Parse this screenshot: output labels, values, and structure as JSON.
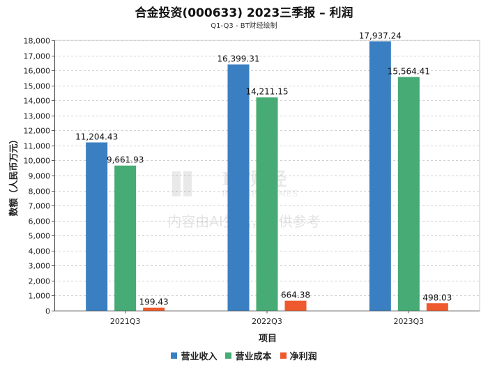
{
  "chart_data": {
    "type": "bar",
    "title": "合金投资(000633) 2023三季报 – 利润",
    "subtitle": "Q1-Q3 - BT财经绘制",
    "xlabel": "项目",
    "ylabel": "数额（人民币万元）",
    "categories": [
      "2021Q3",
      "2022Q3",
      "2023Q3"
    ],
    "series": [
      {
        "name": "营业收入",
        "color": "#3a7fc1",
        "values": [
          11204.43,
          16399.31,
          17937.24
        ],
        "labels": [
          "11,204.43",
          "16,399.31",
          "17,937.24"
        ]
      },
      {
        "name": "营业成本",
        "color": "#46ab74",
        "values": [
          9661.93,
          14211.15,
          15564.41
        ],
        "labels": [
          "9,661.93",
          "14,211.15",
          "15,564.41"
        ]
      },
      {
        "name": "净利润",
        "color": "#ee5a2e",
        "values": [
          199.43,
          664.38,
          498.03
        ],
        "labels": [
          "199.43",
          "664.38",
          "498.03"
        ]
      }
    ],
    "ylim": [
      0,
      18000
    ],
    "yticks": [
      0,
      1000,
      2000,
      3000,
      4000,
      5000,
      6000,
      7000,
      8000,
      9000,
      10000,
      11000,
      12000,
      13000,
      14000,
      15000,
      16000,
      17000,
      18000
    ],
    "ytick_labels": [
      "0",
      "1,000",
      "2,000",
      "3,000",
      "4,000",
      "5,000",
      "6,000",
      "7,000",
      "8,000",
      "9,000",
      "10,000",
      "11,000",
      "12,000",
      "13,000",
      "14,000",
      "15,000",
      "16,000",
      "17,000",
      "18,000"
    ],
    "grid": true,
    "legend": "bottom-center"
  },
  "watermark": {
    "logo_text": "BT财经",
    "logo_sub": "BUSINESSTIMES",
    "notice": "内容由AI生成，仅供参考"
  }
}
